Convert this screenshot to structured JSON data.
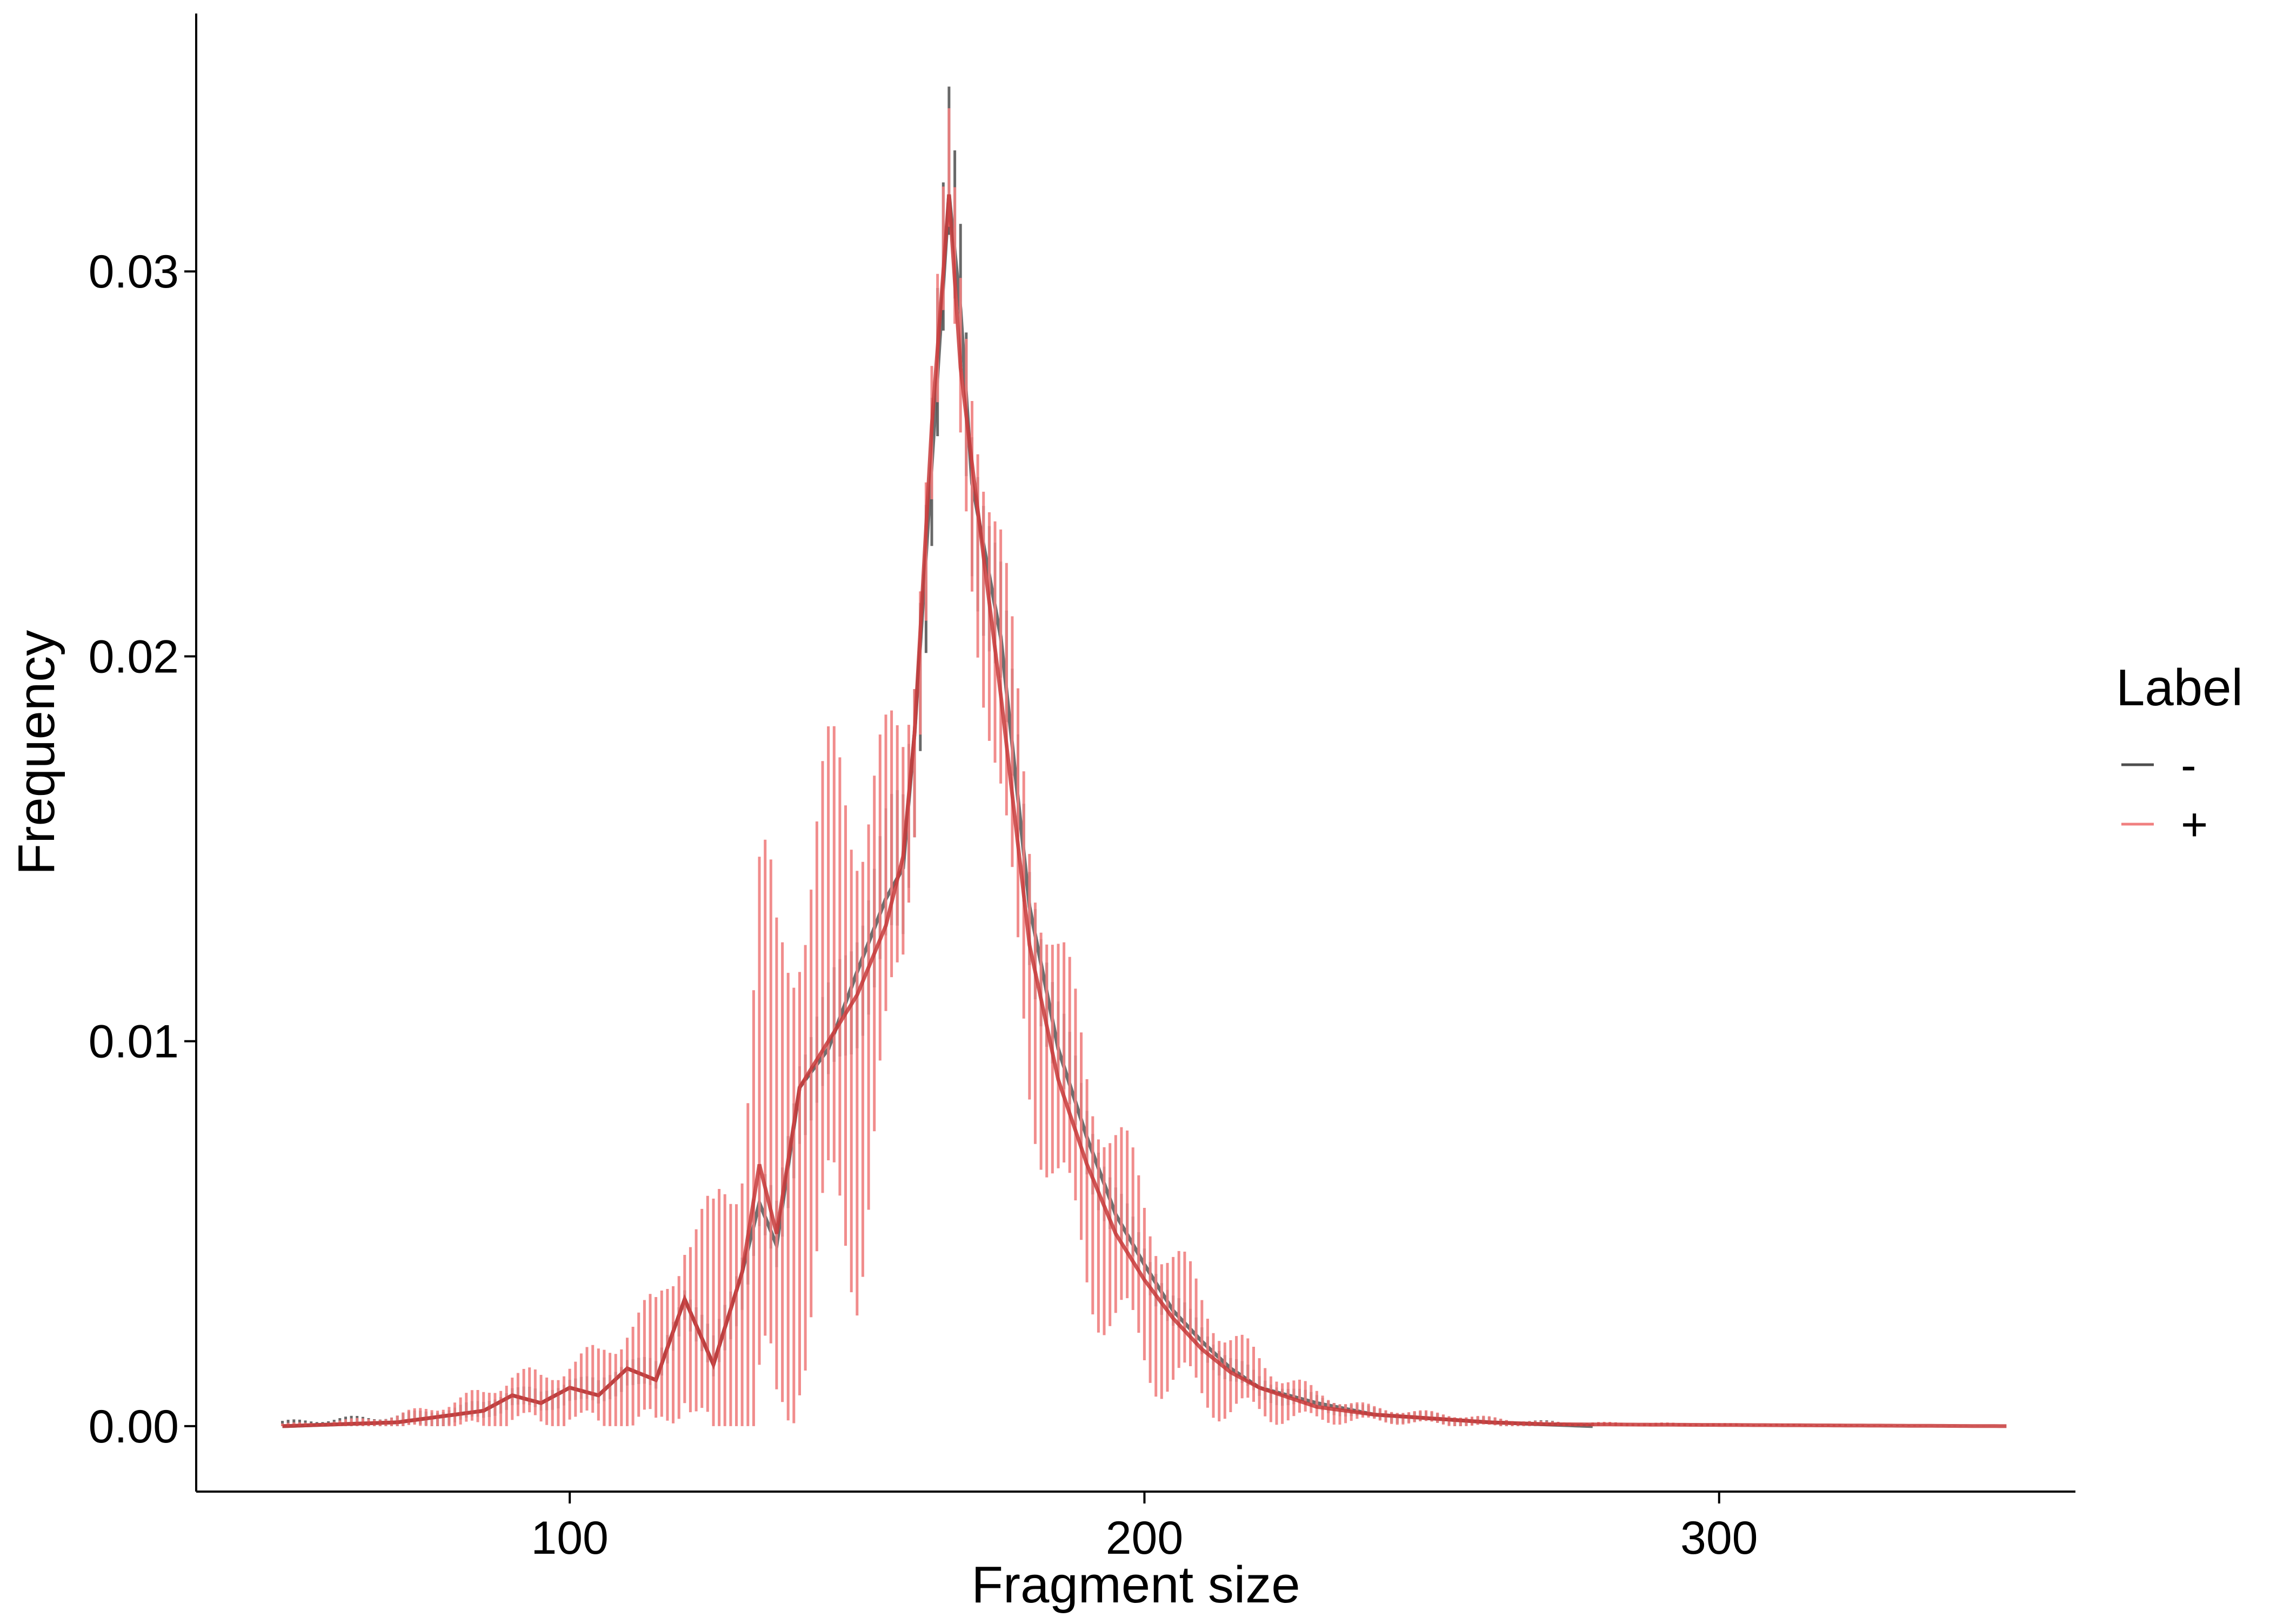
{
  "chart_data": {
    "type": "line",
    "title": "",
    "xlabel": "Fragment size",
    "ylabel": "Frequency",
    "xlim": [
      35,
      362
    ],
    "ylim": [
      -0.0017,
      0.0367
    ],
    "x_ticks": [
      100,
      200,
      300
    ],
    "x_tick_labels": [
      "100",
      "200",
      "300"
    ],
    "y_ticks": [
      0.0,
      0.01,
      0.02,
      0.03
    ],
    "y_tick_labels": [
      "0.00",
      "0.01",
      "0.02",
      "0.03"
    ],
    "grid": false,
    "legend": {
      "title": "Label",
      "position": "right",
      "entries": [
        {
          "label": "-",
          "color": "#4d4d4d"
        },
        {
          "label": "+",
          "color": "#f08080"
        }
      ]
    },
    "series": [
      {
        "name": "-",
        "color": "#4d4d4d",
        "x_range": [
          50,
          278
        ],
        "points": [
          [
            50,
            0.0
          ],
          [
            60,
            5e-05
          ],
          [
            70,
            0.0001
          ],
          [
            80,
            0.0003
          ],
          [
            85,
            0.0004
          ],
          [
            90,
            0.0008
          ],
          [
            95,
            0.0006
          ],
          [
            100,
            0.001
          ],
          [
            105,
            0.0008
          ],
          [
            110,
            0.0015
          ],
          [
            115,
            0.0012
          ],
          [
            120,
            0.0033
          ],
          [
            125,
            0.0016
          ],
          [
            130,
            0.004
          ],
          [
            133,
            0.0058
          ],
          [
            136,
            0.0047
          ],
          [
            140,
            0.0088
          ],
          [
            145,
            0.0098
          ],
          [
            150,
            0.0118
          ],
          [
            155,
            0.0137
          ],
          [
            158,
            0.0145
          ],
          [
            160,
            0.018
          ],
          [
            163,
            0.025
          ],
          [
            166,
            0.032
          ],
          [
            168,
            0.029
          ],
          [
            170,
            0.0245
          ],
          [
            175,
            0.0205
          ],
          [
            180,
            0.0135
          ],
          [
            185,
            0.0098
          ],
          [
            190,
            0.0075
          ],
          [
            195,
            0.0055
          ],
          [
            200,
            0.0042
          ],
          [
            205,
            0.003
          ],
          [
            210,
            0.0022
          ],
          [
            215,
            0.0015
          ],
          [
            220,
            0.001
          ],
          [
            230,
            0.0006
          ],
          [
            240,
            0.0003
          ],
          [
            250,
            0.0002
          ],
          [
            260,
            0.0001
          ],
          [
            278,
            0.0
          ]
        ],
        "spike_spread": [
          [
            50,
            0.0002
          ],
          [
            90,
            0.0004
          ],
          [
            120,
            0.0007
          ],
          [
            135,
            0.0015
          ],
          [
            150,
            0.0025
          ],
          [
            160,
            0.0035
          ],
          [
            168,
            0.0035
          ],
          [
            180,
            0.0022
          ],
          [
            200,
            0.0008
          ],
          [
            230,
            0.0003
          ],
          [
            278,
            0.0001
          ]
        ]
      },
      {
        "name": "+",
        "color": "#f08080",
        "x_range": [
          50,
          350
        ],
        "points": [
          [
            50,
            0.0
          ],
          [
            60,
            5e-05
          ],
          [
            70,
            0.0001
          ],
          [
            80,
            0.0003
          ],
          [
            85,
            0.0004
          ],
          [
            90,
            0.0008
          ],
          [
            95,
            0.0006
          ],
          [
            100,
            0.001
          ],
          [
            105,
            0.0008
          ],
          [
            110,
            0.0015
          ],
          [
            115,
            0.0012
          ],
          [
            120,
            0.0033
          ],
          [
            125,
            0.0016
          ],
          [
            130,
            0.004
          ],
          [
            133,
            0.0068
          ],
          [
            136,
            0.005
          ],
          [
            140,
            0.0088
          ],
          [
            145,
            0.01
          ],
          [
            150,
            0.0112
          ],
          [
            155,
            0.013
          ],
          [
            158,
            0.0148
          ],
          [
            160,
            0.018
          ],
          [
            163,
            0.026
          ],
          [
            166,
            0.032
          ],
          [
            168,
            0.0275
          ],
          [
            170,
            0.025
          ],
          [
            175,
            0.019
          ],
          [
            180,
            0.0125
          ],
          [
            185,
            0.009
          ],
          [
            190,
            0.0068
          ],
          [
            195,
            0.005
          ],
          [
            200,
            0.0038
          ],
          [
            205,
            0.0028
          ],
          [
            210,
            0.002
          ],
          [
            215,
            0.0014
          ],
          [
            220,
            0.001
          ],
          [
            230,
            0.0005
          ],
          [
            240,
            0.0003
          ],
          [
            250,
            0.0002
          ],
          [
            260,
            0.0001
          ],
          [
            270,
            5e-05
          ],
          [
            350,
            0.0
          ]
        ],
        "spike_spread": [
          [
            50,
            0.0001
          ],
          [
            60,
            0.00015
          ],
          [
            70,
            0.0003
          ],
          [
            80,
            0.0006
          ],
          [
            90,
            0.001
          ],
          [
            100,
            0.0012
          ],
          [
            110,
            0.0022
          ],
          [
            120,
            0.0035
          ],
          [
            130,
            0.0075
          ],
          [
            133,
            0.012
          ],
          [
            140,
            0.01
          ],
          [
            150,
            0.0105
          ],
          [
            155,
            0.007
          ],
          [
            160,
            0.0035
          ],
          [
            166,
            0.0028
          ],
          [
            170,
            0.0045
          ],
          [
            175,
            0.006
          ],
          [
            180,
            0.0058
          ],
          [
            190,
            0.0048
          ],
          [
            200,
            0.0036
          ],
          [
            210,
            0.0022
          ],
          [
            220,
            0.0012
          ],
          [
            230,
            0.0006
          ],
          [
            240,
            0.0003
          ],
          [
            260,
            0.0002
          ],
          [
            270,
            0.0001
          ],
          [
            350,
            0.0
          ]
        ]
      }
    ]
  }
}
